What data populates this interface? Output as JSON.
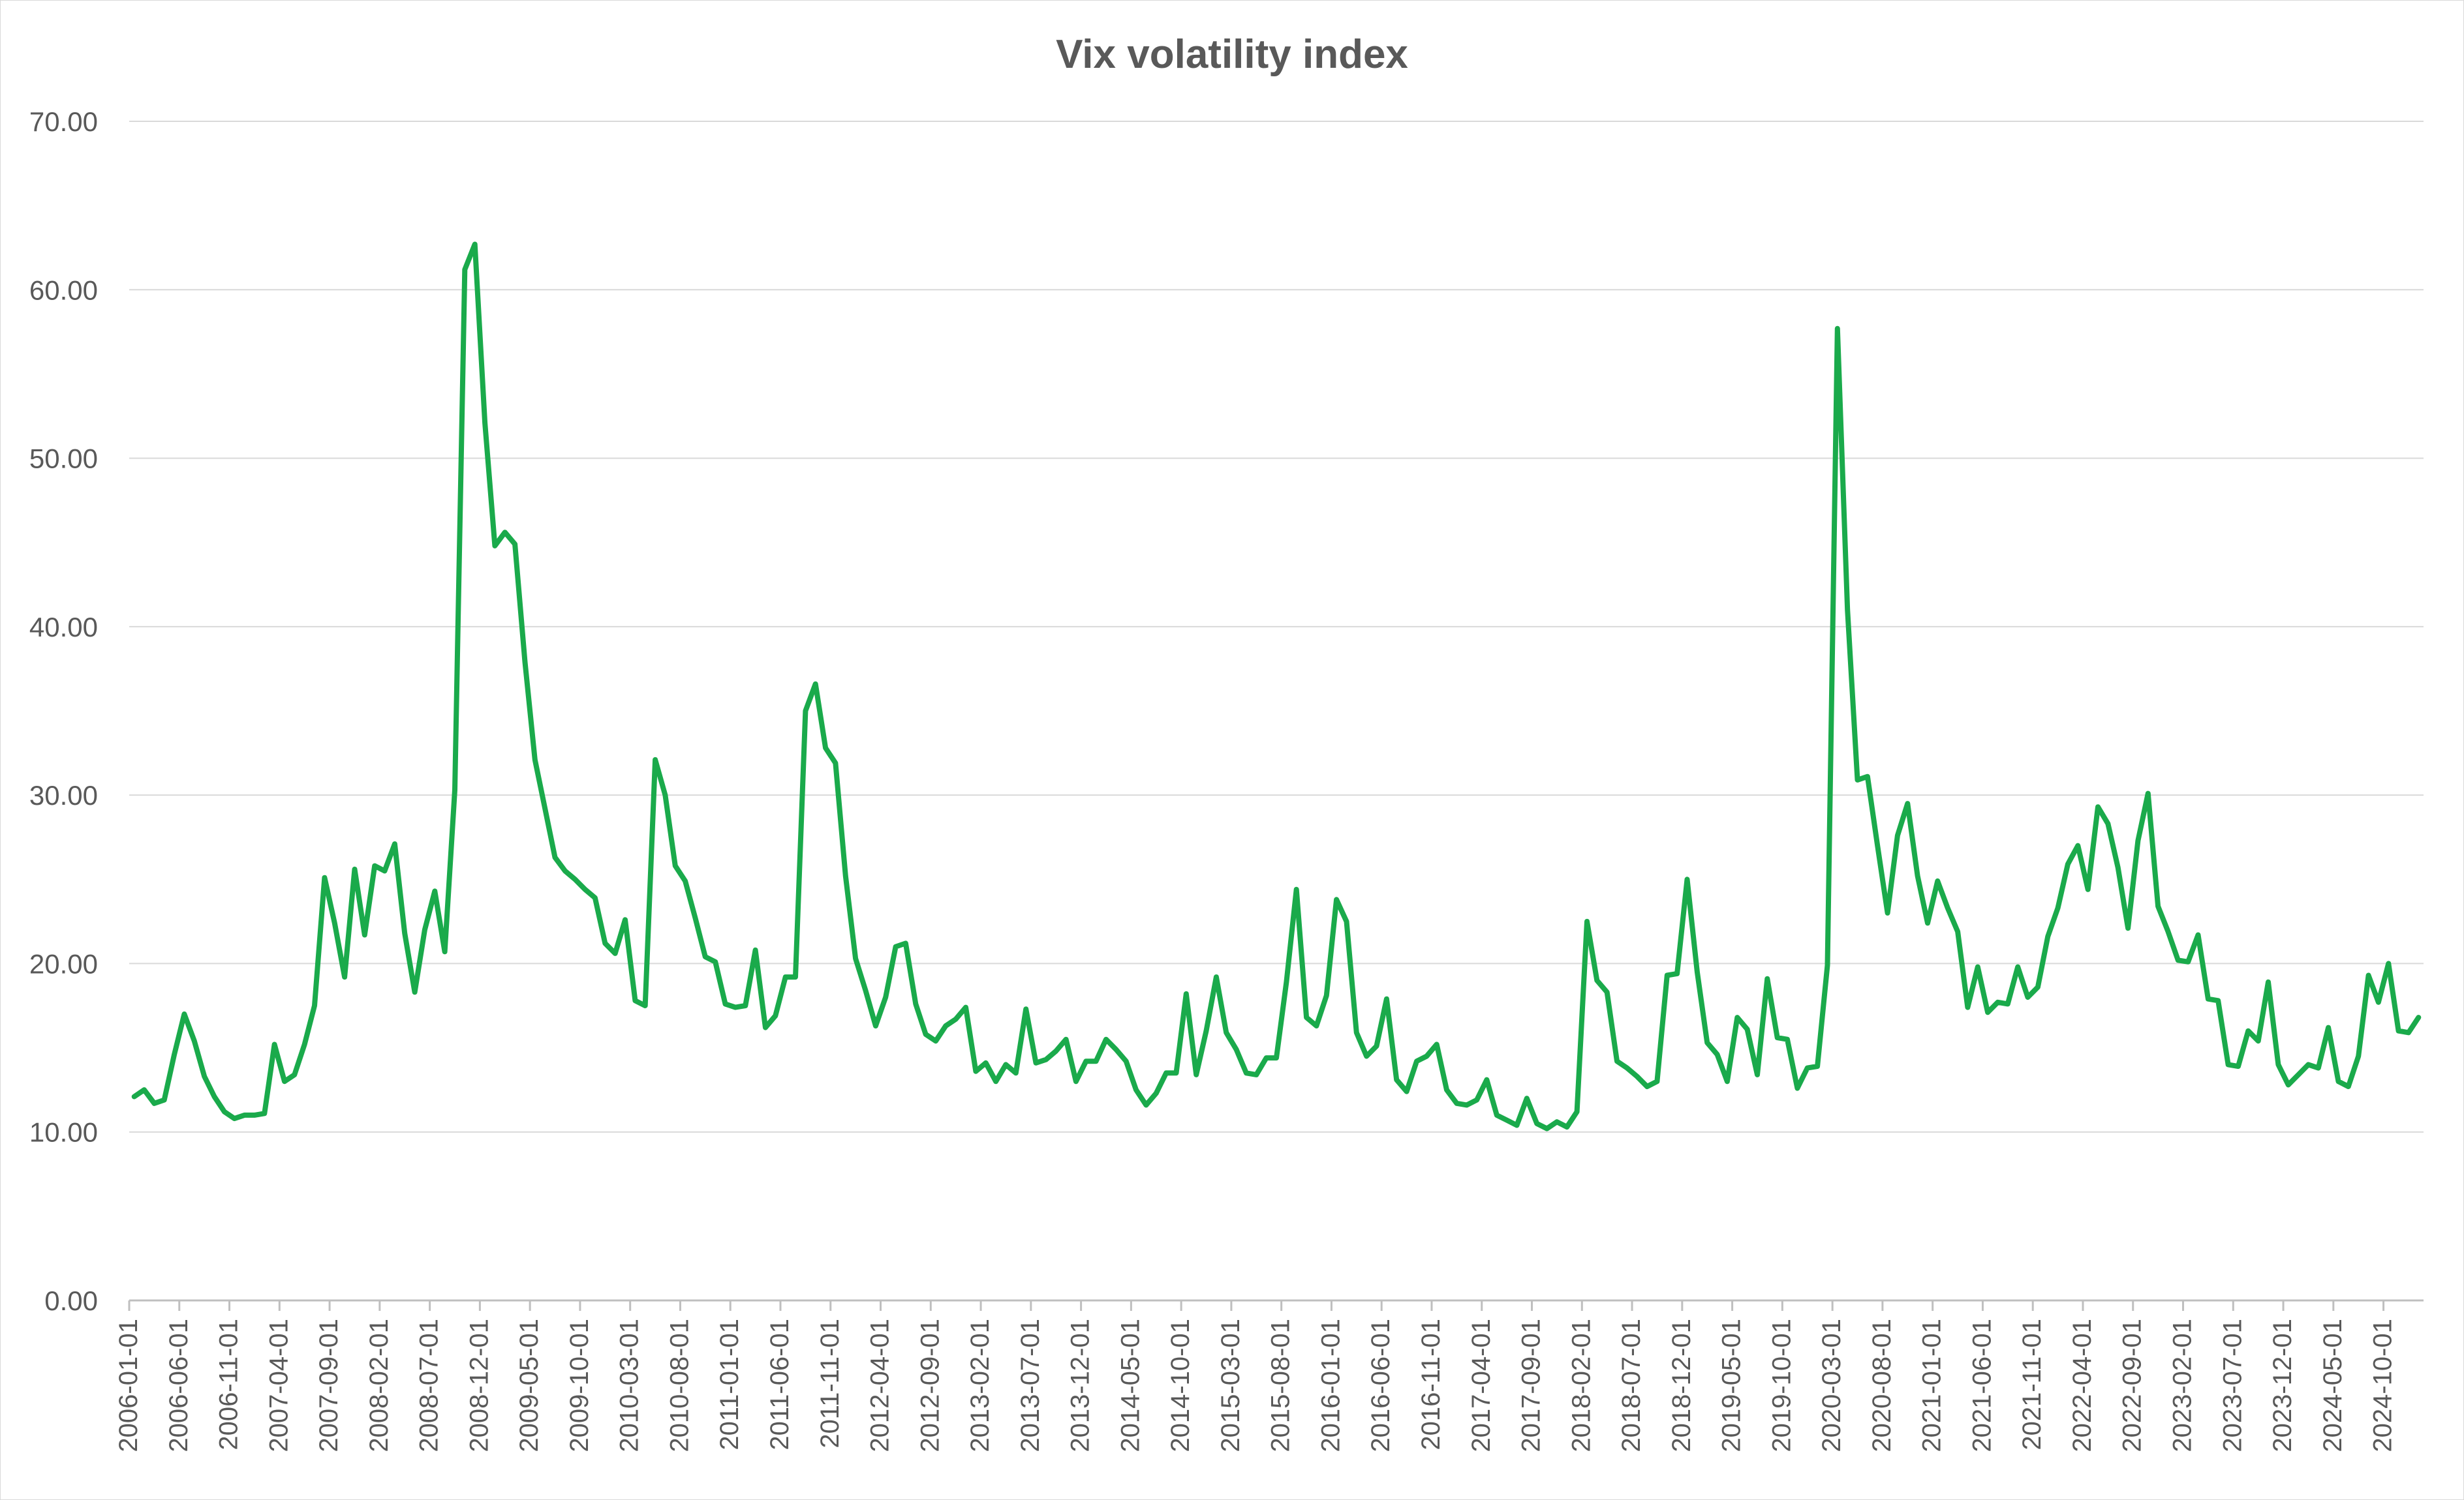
{
  "chart_data": {
    "type": "line",
    "title": "Vix volatility index",
    "xlabel": "",
    "ylabel": "",
    "ylim": [
      0,
      70
    ],
    "yticks": [
      "0.00",
      "10.00",
      "20.00",
      "30.00",
      "40.00",
      "50.00",
      "60.00",
      "70.00"
    ],
    "grid": true,
    "line_color": "#1aaa4b",
    "x_start": "2006-01-01",
    "x_tick_labels": [
      "2006-01-01",
      "2006-06-01",
      "2006-11-01",
      "2007-04-01",
      "2007-09-01",
      "2008-02-01",
      "2008-07-01",
      "2008-12-01",
      "2009-05-01",
      "2009-10-01",
      "2010-03-01",
      "2010-08-01",
      "2011-01-01",
      "2011-06-01",
      "2011-11-01",
      "2012-04-01",
      "2012-09-01",
      "2013-02-01",
      "2013-07-01",
      "2013-12-01",
      "2014-05-01",
      "2014-10-01",
      "2015-03-01",
      "2015-08-01",
      "2016-01-01",
      "2016-06-01",
      "2016-11-01",
      "2017-04-01",
      "2017-09-01",
      "2018-02-01",
      "2018-07-01",
      "2018-12-01",
      "2019-05-01",
      "2019-10-01",
      "2020-03-01",
      "2020-08-01",
      "2021-01-01",
      "2021-06-01",
      "2021-11-01",
      "2022-04-01",
      "2022-09-01",
      "2023-02-01",
      "2023-07-01",
      "2023-12-01",
      "2024-05-01",
      "2024-10-01"
    ],
    "series": [
      {
        "values": [
          12.1,
          12.5,
          11.7,
          11.9,
          14.6,
          17.0,
          15.4,
          13.3,
          12.1,
          11.2,
          10.8,
          11.0,
          11.0,
          11.1,
          15.2,
          13.0,
          13.4,
          15.2,
          17.5,
          25.1,
          22.4,
          19.2,
          25.6,
          21.7,
          25.8,
          25.5,
          27.1,
          21.8,
          18.3,
          22.0,
          24.3,
          20.7,
          30.3,
          61.2,
          62.7,
          52.1,
          44.8,
          45.6,
          44.9,
          37.9,
          32.1,
          29.2,
          26.3,
          25.5,
          25.0,
          24.4,
          23.9,
          21.2,
          20.6,
          22.6,
          17.8,
          17.5,
          32.1,
          30.0,
          25.8,
          24.9,
          22.7,
          20.4,
          20.1,
          17.6,
          17.4,
          17.5,
          20.8,
          16.2,
          16.9,
          19.2,
          19.2,
          35.0,
          36.6,
          32.8,
          31.9,
          25.2,
          20.3,
          18.4,
          16.3,
          18.0,
          21.0,
          21.2,
          17.6,
          15.8,
          15.4,
          16.3,
          16.7,
          17.4,
          13.6,
          14.1,
          13.0,
          14.0,
          13.5,
          17.3,
          14.1,
          14.3,
          14.8,
          15.5,
          13.0,
          14.2,
          14.2,
          15.5,
          14.9,
          14.2,
          12.5,
          11.6,
          12.3,
          13.5,
          13.5,
          18.2,
          13.4,
          16.0,
          19.2,
          15.9,
          14.9,
          13.5,
          13.4,
          14.4,
          14.4,
          18.9,
          24.4,
          16.8,
          16.3,
          18.1,
          23.8,
          22.5,
          15.9,
          14.5,
          15.1,
          17.9,
          13.1,
          12.4,
          14.2,
          14.5,
          15.2,
          12.5,
          11.7,
          11.6,
          11.9,
          13.1,
          11.0,
          10.7,
          10.4,
          12.0,
          10.5,
          10.2,
          10.6,
          10.3,
          11.2,
          22.5,
          19.0,
          18.3,
          14.2,
          13.8,
          13.3,
          12.7,
          13.0,
          19.3,
          19.4,
          25.0,
          19.5,
          15.3,
          14.6,
          13.0,
          16.8,
          16.1,
          13.4,
          19.1,
          15.6,
          15.5,
          12.6,
          13.8,
          13.9,
          19.9,
          57.7,
          41.0,
          30.9,
          31.1,
          27.0,
          23.0,
          27.6,
          29.5,
          25.2,
          22.4,
          24.9,
          23.3,
          21.9,
          17.4,
          19.8,
          17.1,
          17.7,
          17.6,
          19.8,
          18.0,
          18.6,
          21.6,
          23.3,
          25.9,
          27.0,
          24.4,
          29.3,
          28.3,
          25.7,
          22.1,
          27.3,
          30.1,
          23.4,
          21.9,
          20.2,
          20.1,
          21.7,
          17.9,
          17.8,
          14.0,
          13.9,
          16.0,
          15.4,
          18.9,
          14.0,
          12.8,
          13.4,
          14.0,
          13.8,
          16.2,
          13.0,
          12.7,
          14.5,
          19.3,
          17.7,
          20.0,
          16.0,
          15.9,
          16.8
        ]
      }
    ]
  }
}
